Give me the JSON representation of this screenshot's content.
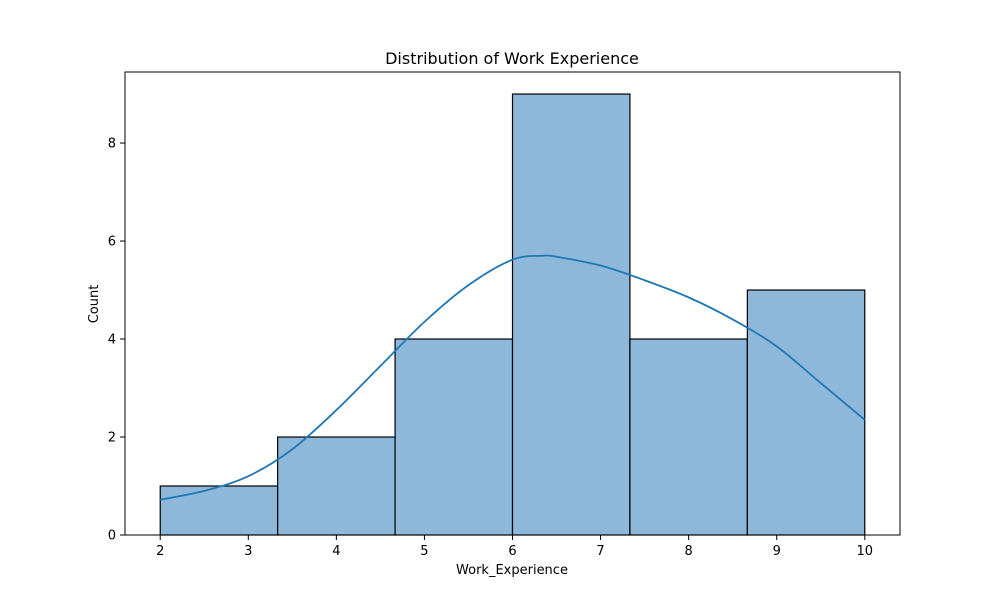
{
  "chart_data": {
    "type": "bar",
    "subtype": "histogram",
    "title": "Distribution of Work Experience",
    "xlabel": "Work_Experience",
    "ylabel": "Count",
    "xlim": [
      1.6,
      10.4
    ],
    "ylim": [
      0,
      9.45
    ],
    "xticks": [
      2,
      3,
      4,
      5,
      6,
      7,
      8,
      9,
      10
    ],
    "yticks": [
      0,
      2,
      4,
      6,
      8
    ],
    "bins": [
      {
        "x0": 2.0,
        "x1": 3.3333,
        "count": 1
      },
      {
        "x0": 3.3333,
        "x1": 4.6667,
        "count": 2
      },
      {
        "x0": 4.6667,
        "x1": 6.0,
        "count": 4
      },
      {
        "x0": 6.0,
        "x1": 7.3333,
        "count": 9
      },
      {
        "x0": 7.3333,
        "x1": 8.6667,
        "count": 4
      },
      {
        "x0": 8.6667,
        "x1": 10.0,
        "count": 5
      }
    ],
    "kde": {
      "x": [
        2.0,
        2.5,
        3.0,
        3.5,
        4.0,
        4.5,
        5.0,
        5.5,
        6.0,
        6.35,
        6.5,
        7.0,
        7.5,
        8.0,
        8.5,
        9.0,
        9.5,
        10.0
      ],
      "y": [
        0.72,
        0.9,
        1.2,
        1.75,
        2.55,
        3.45,
        4.35,
        5.1,
        5.62,
        5.7,
        5.68,
        5.5,
        5.2,
        4.85,
        4.4,
        3.85,
        3.1,
        2.35
      ]
    },
    "grid": false,
    "legend": "none",
    "colors": {
      "bar_fill": "#8db8da",
      "bar_edge": "#000000",
      "kde_line": "#1f77b4"
    }
  }
}
